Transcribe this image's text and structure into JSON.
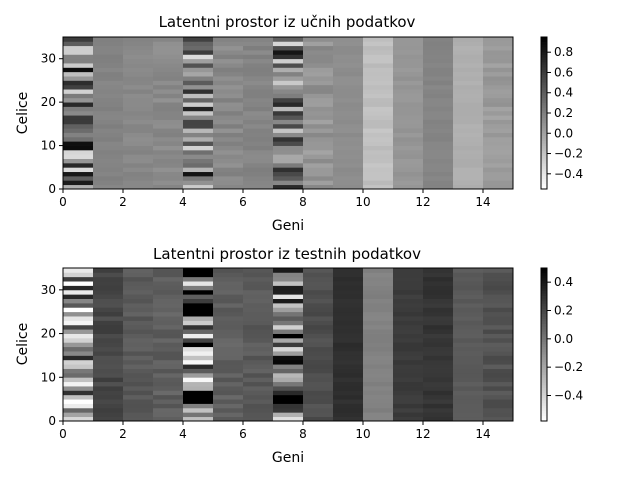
{
  "chart_data": [
    {
      "type": "heatmap",
      "title": "Latentni prostor iz učnih podatkov",
      "xlabel": "Geni",
      "ylabel": "Celice",
      "xlim": [
        0,
        15
      ],
      "ylim": [
        0,
        35
      ],
      "x_ticks": [
        "0",
        "2",
        "4",
        "6",
        "8",
        "10",
        "12",
        "14"
      ],
      "y_ticks": [
        "0",
        "10",
        "20",
        "30"
      ],
      "colormap": "gray_r",
      "vmin": -0.55,
      "vmax": 0.95,
      "colorbar_ticks": [
        0.8,
        0.6,
        0.4,
        0.2,
        0.0,
        -0.2,
        -0.4
      ],
      "colorbar_tick_labels": [
        "0.8",
        "0.6",
        "0.4",
        "0.2",
        "0.0",
        "−0.2",
        "−0.4"
      ],
      "column_means": [
        0.25,
        0.18,
        0.15,
        0.14,
        0.25,
        0.15,
        0.17,
        0.25,
        0.08,
        0.12,
        -0.18,
        0.07,
        0.17,
        -0.08,
        0.04
      ],
      "column_variability": [
        0.65,
        0.03,
        0.04,
        0.05,
        0.6,
        0.06,
        0.04,
        0.6,
        0.1,
        0.02,
        0.04,
        0.03,
        0.02,
        0.02,
        0.06
      ],
      "seed": 7
    },
    {
      "type": "heatmap",
      "title": "Latentni prostor iz testnih podatkov",
      "xlabel": "Geni",
      "ylabel": "Celice",
      "xlim": [
        0,
        15
      ],
      "ylim": [
        0,
        35
      ],
      "x_ticks": [
        "0",
        "2",
        "4",
        "6",
        "8",
        "10",
        "12",
        "14"
      ],
      "y_ticks": [
        "0",
        "10",
        "20",
        "30"
      ],
      "colormap": "gray_r",
      "vmin": -0.58,
      "vmax": 0.5,
      "colorbar_ticks": [
        0.4,
        0.2,
        0.0,
        -0.2,
        -0.4
      ],
      "colorbar_tick_labels": [
        "0.4",
        "0.2",
        "0.0",
        "−0.2",
        "−0.4"
      ],
      "column_means": [
        -0.15,
        0.2,
        0.12,
        0.1,
        0.1,
        0.1,
        0.12,
        0.08,
        0.17,
        0.3,
        -0.05,
        0.25,
        0.28,
        0.12,
        0.15
      ],
      "column_variability": [
        0.5,
        0.05,
        0.04,
        0.05,
        0.7,
        0.05,
        0.04,
        0.55,
        0.04,
        0.02,
        0.02,
        0.02,
        0.03,
        0.02,
        0.05
      ],
      "seed": 13
    }
  ]
}
